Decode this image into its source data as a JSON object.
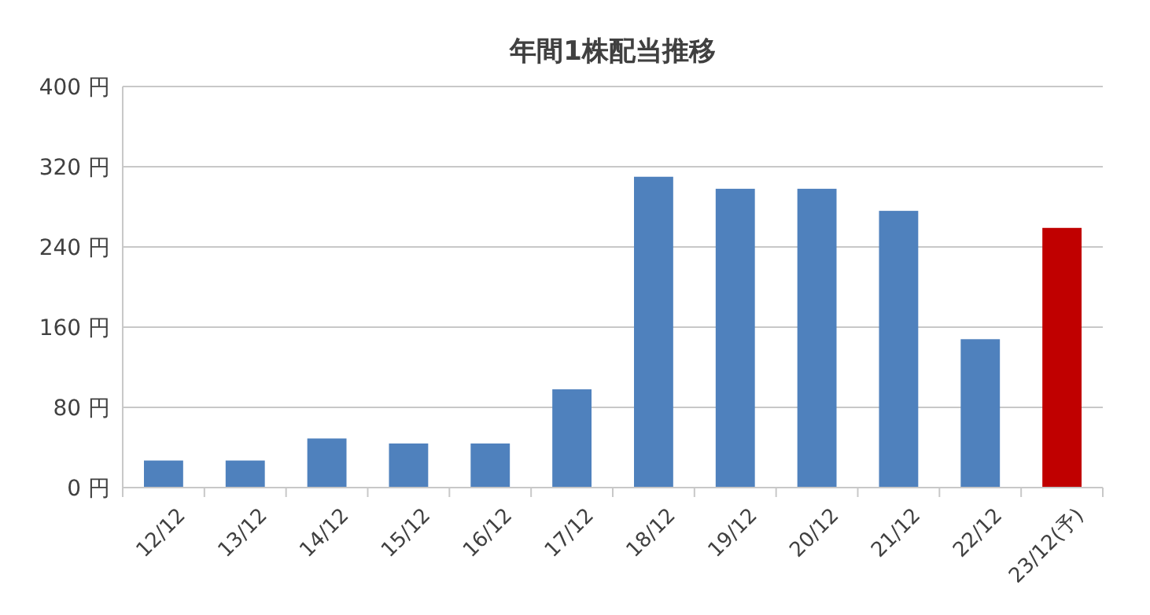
{
  "chart_data": {
    "type": "bar",
    "title": "年間1株配当推移",
    "categories": [
      "12/12",
      "13/12",
      "14/12",
      "15/12",
      "16/12",
      "17/12",
      "18/12",
      "19/12",
      "20/12",
      "21/12",
      "22/12",
      "23/12(予)"
    ],
    "values": [
      27,
      27,
      49,
      44,
      44,
      98,
      310,
      298,
      298,
      276,
      148,
      259
    ],
    "colors": [
      "#4f81bd",
      "#4f81bd",
      "#4f81bd",
      "#4f81bd",
      "#4f81bd",
      "#4f81bd",
      "#4f81bd",
      "#4f81bd",
      "#4f81bd",
      "#4f81bd",
      "#4f81bd",
      "#c00000"
    ],
    "ylim": [
      0,
      400
    ],
    "yticks": [
      {
        "value": 0,
        "label": "0 円"
      },
      {
        "value": 80,
        "label": "80 円"
      },
      {
        "value": 160,
        "label": "160 円"
      },
      {
        "value": 240,
        "label": "240 円"
      },
      {
        "value": 320,
        "label": "320 円"
      },
      {
        "value": 400,
        "label": "400 円"
      }
    ],
    "grid": "y"
  }
}
